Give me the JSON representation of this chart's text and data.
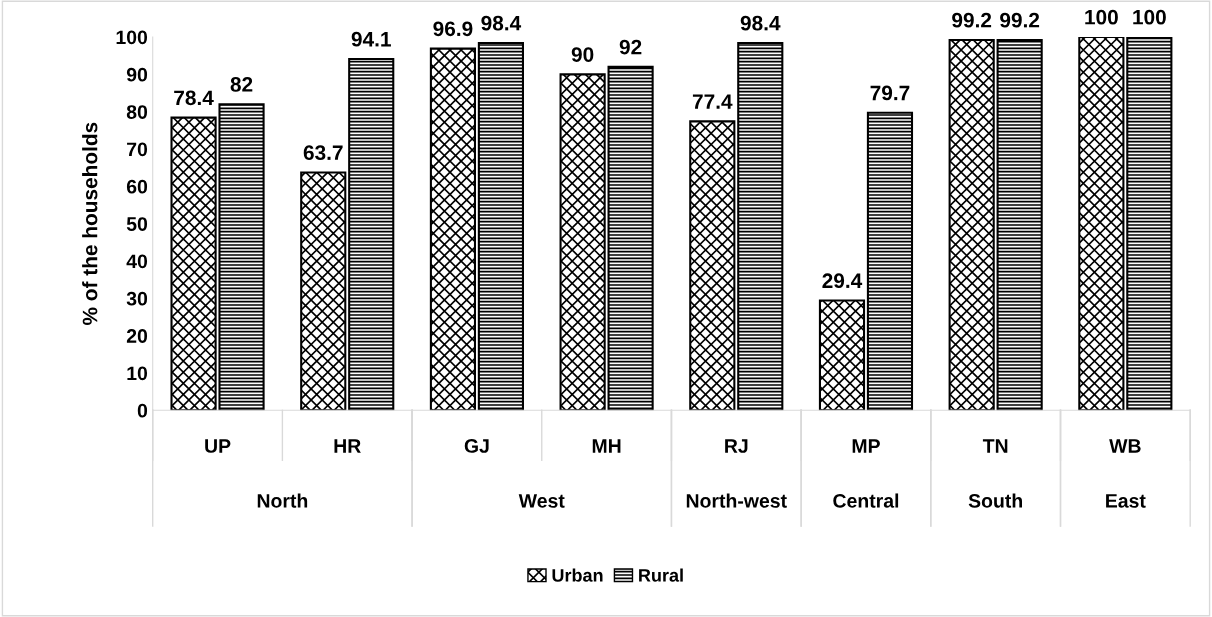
{
  "chart_data": {
    "type": "bar",
    "ylabel": "% of the households",
    "categories": [
      "UP",
      "HR",
      "GJ",
      "MH",
      "RJ",
      "MP",
      "TN",
      "WB"
    ],
    "series": [
      {
        "name": "Urban",
        "color": "#000000",
        "values": [
          78.4,
          63.7,
          96.9,
          90,
          77.4,
          29.4,
          99.2,
          100
        ]
      },
      {
        "name": "Rural",
        "color": "#000000",
        "values": [
          82,
          94.1,
          98.4,
          92,
          98.4,
          79.7,
          99.2,
          100
        ]
      }
    ],
    "annotations": [
      "North",
      "West",
      "North-west",
      "Central",
      "South",
      "East"
    ],
    "ylim": [
      0,
      100
    ],
    "yticks": [
      0,
      10,
      20,
      30,
      40,
      50,
      60,
      70,
      80,
      90,
      100
    ],
    "data_labels": true,
    "legend": "bottom",
    "grid": false
  }
}
